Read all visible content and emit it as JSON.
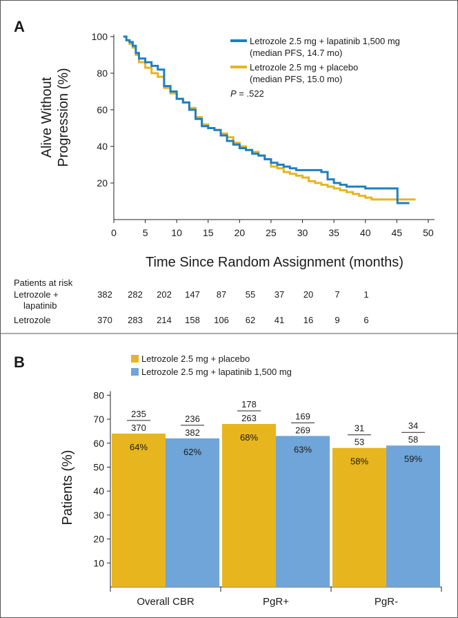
{
  "panels": {
    "a": "A",
    "b": "B"
  },
  "chart_data": [
    {
      "type": "line",
      "panel": "A",
      "xlabel": "Time Since Random Assignment (months)",
      "ylabel_lines": [
        "Alive Without",
        "Progression (%)"
      ],
      "xlim": [
        0,
        51
      ],
      "ylim": [
        0,
        100
      ],
      "x_ticks": [
        0,
        5,
        10,
        15,
        20,
        25,
        30,
        35,
        40,
        45,
        50
      ],
      "y_ticks": [
        20,
        40,
        60,
        80,
        100
      ],
      "legend_position": "top-right",
      "colors": {
        "lapatinib": "#1f7fc1",
        "placebo": "#e7b51d"
      },
      "series": [
        {
          "name": "Letrozole 2.5 mg + lapatinib 1,500 mg",
          "legend_sub": "(median PFS, 14.7 mo)",
          "color": "#1f7fc1",
          "points": [
            [
              1.5,
              100
            ],
            [
              2,
              98
            ],
            [
              2.5,
              97
            ],
            [
              3,
              95
            ],
            [
              3.5,
              91
            ],
            [
              4,
              88
            ],
            [
              5,
              86
            ],
            [
              6,
              84
            ],
            [
              7,
              82
            ],
            [
              8,
              73
            ],
            [
              9,
              70
            ],
            [
              10,
              66
            ],
            [
              11,
              64
            ],
            [
              12,
              60
            ],
            [
              13,
              55
            ],
            [
              14,
              51
            ],
            [
              15,
              50
            ],
            [
              16,
              49
            ],
            [
              17,
              46
            ],
            [
              18,
              43
            ],
            [
              19,
              41
            ],
            [
              20,
              39
            ],
            [
              21,
              38
            ],
            [
              22,
              36
            ],
            [
              23,
              35
            ],
            [
              24,
              33
            ],
            [
              25,
              31
            ],
            [
              26,
              30
            ],
            [
              27,
              29
            ],
            [
              28,
              28
            ],
            [
              29,
              27
            ],
            [
              30,
              27
            ],
            [
              31,
              27
            ],
            [
              33,
              26
            ],
            [
              34,
              22
            ],
            [
              35,
              20
            ],
            [
              36,
              19
            ],
            [
              37,
              18
            ],
            [
              38,
              18
            ],
            [
              39,
              18
            ],
            [
              40,
              17
            ],
            [
              41,
              17
            ],
            [
              42,
              17
            ],
            [
              43,
              17
            ],
            [
              44,
              17
            ],
            [
              45,
              17
            ],
            [
              45.1,
              9
            ],
            [
              47,
              9
            ]
          ]
        },
        {
          "name": "Letrozole 2.5 mg + placebo",
          "legend_sub": "(median PFS, 15.0 mo)",
          "color": "#e7b51d",
          "points": [
            [
              1.5,
              100
            ],
            [
              2,
              98
            ],
            [
              2.5,
              96
            ],
            [
              3,
              94
            ],
            [
              3.5,
              90
            ],
            [
              4,
              86
            ],
            [
              5,
              83
            ],
            [
              6,
              80
            ],
            [
              7,
              78
            ],
            [
              8,
              72
            ],
            [
              9,
              69
            ],
            [
              10,
              66
            ],
            [
              11,
              64
            ],
            [
              12,
              61
            ],
            [
              13,
              56
            ],
            [
              14,
              52
            ],
            [
              15,
              50
            ],
            [
              16,
              49
            ],
            [
              17,
              47
            ],
            [
              18,
              45
            ],
            [
              19,
              42
            ],
            [
              20,
              40
            ],
            [
              21,
              38
            ],
            [
              22,
              37
            ],
            [
              23,
              35
            ],
            [
              24,
              33
            ],
            [
              25,
              29
            ],
            [
              26,
              28
            ],
            [
              27,
              26
            ],
            [
              28,
              25
            ],
            [
              29,
              24
            ],
            [
              30,
              23
            ],
            [
              31,
              21
            ],
            [
              32,
              20
            ],
            [
              33,
              19
            ],
            [
              34,
              18
            ],
            [
              35,
              17
            ],
            [
              36,
              16
            ],
            [
              37,
              15
            ],
            [
              38,
              14
            ],
            [
              39,
              13
            ],
            [
              40,
              12
            ],
            [
              41,
              11
            ],
            [
              42,
              11
            ],
            [
              43,
              11
            ],
            [
              44,
              11
            ],
            [
              45,
              11
            ],
            [
              46,
              11
            ],
            [
              47,
              11
            ],
            [
              48,
              11
            ]
          ]
        }
      ],
      "annotation": {
        "italic": "P",
        "text": " = .522"
      }
    },
    {
      "type": "bar",
      "panel": "B",
      "ylabel": "Patients (%)",
      "ylim": [
        0,
        85
      ],
      "y_ticks": [
        10,
        20,
        30,
        40,
        50,
        60,
        70,
        80
      ],
      "categories": [
        "Overall CBR",
        "PgR+",
        "PgR-"
      ],
      "legend_position": "top-left",
      "series": [
        {
          "name": "Letrozole 2.5 mg + placebo",
          "color": "#e7b51d",
          "values": [
            64,
            68,
            58
          ],
          "labels": [
            "64%",
            "68%",
            "58%"
          ],
          "numerators": [
            "235",
            "178",
            "31"
          ],
          "denominators": [
            "370",
            "263",
            "53"
          ]
        },
        {
          "name": "Letrozole 2.5 mg + lapatinib 1,500 mg",
          "color": "#6fa5d8",
          "values": [
            62,
            63,
            59
          ],
          "labels": [
            "62%",
            "63%",
            "59%"
          ],
          "numerators": [
            "236",
            "169",
            "34"
          ],
          "denominators": [
            "382",
            "269",
            "58"
          ]
        }
      ]
    }
  ],
  "risk_table": {
    "title": "Patients at risk",
    "rows": [
      {
        "label_lines": [
          "Letrozole +",
          "lapatinib"
        ],
        "values": [
          "382",
          "282",
          "202",
          "147",
          "87",
          "55",
          "37",
          "20",
          "7",
          "1"
        ]
      },
      {
        "label_lines": [
          "Letrozole"
        ],
        "values": [
          "370",
          "283",
          "214",
          "158",
          "106",
          "62",
          "41",
          "16",
          "9",
          "6"
        ]
      }
    ]
  }
}
